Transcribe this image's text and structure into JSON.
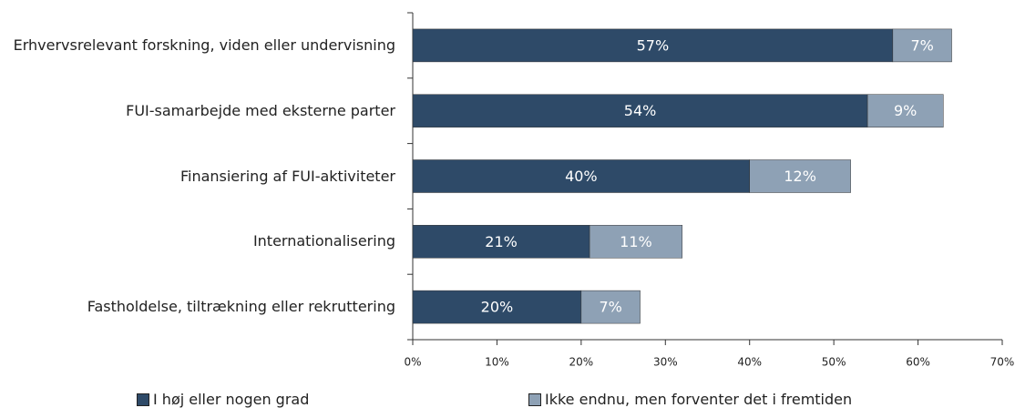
{
  "chart_data": {
    "type": "stacked-bar-horizontal",
    "categories": [
      "Erhvervsrelevant forskning, viden eller undervisning",
      "FUI-samarbejde med eksterne parter",
      "Finansiering af FUI-aktiviteter",
      "Internationalisering",
      "Fastholdelse, tiltrækning eller rekruttering"
    ],
    "series": [
      {
        "name": "I høj eller nogen grad",
        "color": "#2e4a68",
        "values": [
          57,
          54,
          40,
          21,
          20
        ],
        "value_labels": [
          "57%",
          "54%",
          "40%",
          "21%",
          "20%"
        ]
      },
      {
        "name": "Ikke endnu, men forventer det i fremtiden",
        "color": "#8ea1b5",
        "values": [
          7,
          9,
          12,
          11,
          7
        ],
        "value_labels": [
          "7%",
          "9%",
          "12%",
          "11%",
          "7%"
        ]
      }
    ],
    "xlim": [
      0,
      70
    ],
    "xticks": [
      {
        "value": 0,
        "label": "0%"
      },
      {
        "value": 10,
        "label": "10%"
      },
      {
        "value": 20,
        "label": "20%"
      },
      {
        "value": 30,
        "label": "30%"
      },
      {
        "value": 40,
        "label": "40%"
      },
      {
        "value": 50,
        "label": "50%"
      },
      {
        "value": 60,
        "label": "60%"
      },
      {
        "value": 70,
        "label": "70%"
      }
    ],
    "legend": "bottom"
  }
}
